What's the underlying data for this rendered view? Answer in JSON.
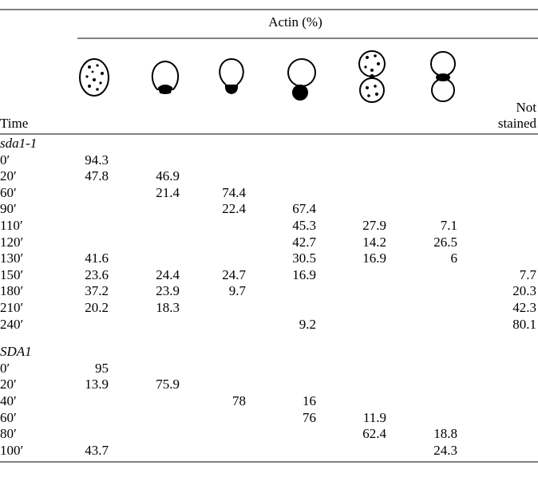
{
  "table": {
    "header": {
      "group_title": "Actin (%)",
      "time": "Time",
      "not_stained": "Not stained"
    },
    "groups": [
      {
        "label": "sda1-1",
        "rows": [
          {
            "time": "0′",
            "values": [
              94.3,
              null,
              null,
              null,
              null,
              null,
              null
            ]
          },
          {
            "time": "20′",
            "values": [
              47.8,
              46.9,
              null,
              null,
              null,
              null,
              null
            ]
          },
          {
            "time": "60′",
            "values": [
              null,
              21.4,
              74.4,
              null,
              null,
              null,
              null
            ]
          },
          {
            "time": "90′",
            "values": [
              null,
              null,
              22.4,
              67.4,
              null,
              null,
              null
            ]
          },
          {
            "time": "110′",
            "values": [
              null,
              null,
              null,
              45.3,
              27.9,
              7.1,
              null
            ]
          },
          {
            "time": "120′",
            "values": [
              null,
              null,
              null,
              42.7,
              14.2,
              26.5,
              null
            ]
          },
          {
            "time": "130′",
            "values": [
              41.6,
              null,
              null,
              30.5,
              16.9,
              6,
              null
            ]
          },
          {
            "time": "150′",
            "values": [
              23.6,
              24.4,
              24.7,
              16.9,
              null,
              null,
              7.7
            ]
          },
          {
            "time": "180′",
            "values": [
              37.2,
              23.9,
              9.7,
              null,
              null,
              null,
              20.3
            ]
          },
          {
            "time": "210′",
            "values": [
              20.2,
              18.3,
              null,
              null,
              null,
              null,
              42.3
            ]
          },
          {
            "time": "240′",
            "values": [
              null,
              null,
              null,
              9.2,
              null,
              null,
              80.1
            ]
          }
        ]
      },
      {
        "label": "SDA1",
        "rows": [
          {
            "time": "0′",
            "values": [
              95,
              null,
              null,
              null,
              null,
              null,
              null
            ]
          },
          {
            "time": "20′",
            "values": [
              13.9,
              75.9,
              null,
              null,
              null,
              null,
              null
            ]
          },
          {
            "time": "40′",
            "values": [
              null,
              null,
              78,
              16,
              null,
              null,
              null
            ]
          },
          {
            "time": "60′",
            "values": [
              null,
              null,
              null,
              76,
              11.9,
              null,
              null
            ]
          },
          {
            "time": "80′",
            "values": [
              null,
              null,
              null,
              null,
              62.4,
              18.8,
              null
            ]
          },
          {
            "time": "100′",
            "values": [
              43.7,
              null,
              null,
              null,
              null,
              24.3,
              null
            ]
          }
        ]
      }
    ]
  }
}
